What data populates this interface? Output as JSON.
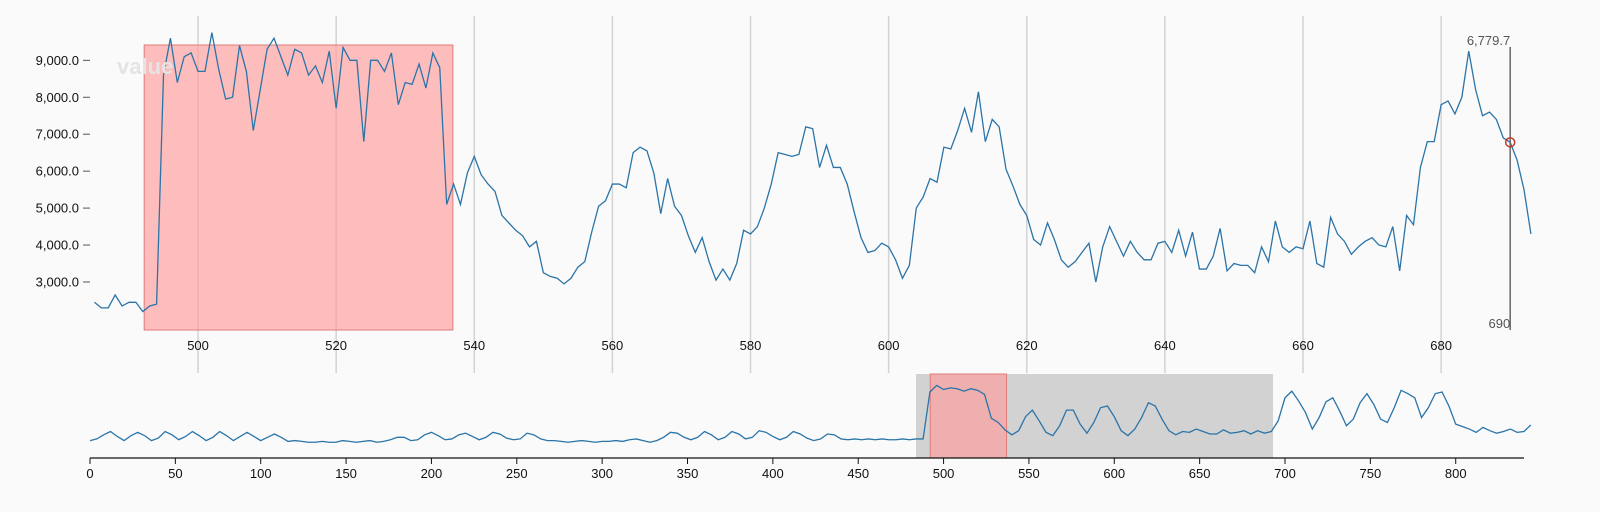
{
  "chart_data": [
    {
      "name": "focus",
      "type": "line",
      "ylabel": "value",
      "xlim": [
        484.5,
        692
      ],
      "ylim": [
        1700,
        10200
      ],
      "x_ticks": [
        500,
        520,
        540,
        560,
        580,
        600,
        620,
        640,
        660,
        680
      ],
      "x_tick_labels": [
        "500",
        "520",
        "540",
        "560",
        "580",
        "600",
        "620",
        "640",
        "660",
        "680"
      ],
      "y_ticks": [
        3000,
        4000,
        5000,
        6000,
        7000,
        8000,
        9000
      ],
      "y_tick_labels": [
        "3,000.0",
        "4,000.0",
        "5,000.0",
        "6,000.0",
        "7,000.0",
        "8,000.0",
        "9,000.0"
      ],
      "grid": "vertical",
      "highlight": {
        "x0": 492.2,
        "x1": 536.9,
        "color": "#ff9c9c"
      },
      "cursor": {
        "x": 690,
        "y": 6779.7,
        "value_label": "6,779.7",
        "x_label": "690"
      },
      "series": [
        {
          "color": "#2b74a8",
          "x_start": 485,
          "x_step": 1,
          "values": [
            2450,
            2300,
            2300,
            2650,
            2350,
            2450,
            2450,
            2200,
            2350,
            2400,
            8600,
            9600,
            8400,
            9100,
            9200,
            8700,
            8700,
            9750,
            8750,
            7950,
            8000,
            9400,
            8700,
            7100,
            8200,
            9300,
            9600,
            9100,
            8600,
            9300,
            9200,
            8600,
            8850,
            8400,
            9250,
            7700,
            9350,
            9000,
            9000,
            6800,
            9000,
            9000,
            8700,
            9200,
            7800,
            8400,
            8350,
            8900,
            8250,
            9200,
            8800,
            5100,
            5650,
            5100,
            5950,
            6400,
            5900,
            5650,
            5450,
            4800,
            4600,
            4400,
            4250,
            3950,
            4100,
            3250,
            3150,
            3100,
            2950,
            3100,
            3400,
            3550,
            4350,
            5050,
            5200,
            5650,
            5650,
            5550,
            6500,
            6650,
            6550,
            5950,
            4850,
            5800,
            5050,
            4800,
            4250,
            3800,
            4200,
            3550,
            3050,
            3350,
            3050,
            3500,
            4400,
            4300,
            4500,
            5000,
            5650,
            6500,
            6450,
            6400,
            6450,
            7200,
            7150,
            6100,
            6700,
            6100,
            6100,
            5650,
            4900,
            4200,
            3800,
            3850,
            4050,
            3950,
            3600,
            3100,
            3450,
            5000,
            5300,
            5800,
            5700,
            6650,
            6600,
            7100,
            7700,
            7050,
            8150,
            6800,
            7400,
            7200,
            6050,
            5600,
            5100,
            4800,
            4150,
            4000,
            4600,
            4150,
            3600,
            3400,
            3550,
            3800,
            4050,
            3000,
            3950,
            4500,
            4100,
            3700,
            4100,
            3800,
            3600,
            3600,
            4050,
            4100,
            3800,
            4400,
            3700,
            4350,
            3350,
            3350,
            3700,
            4450,
            3300,
            3500,
            3450,
            3450,
            3250,
            3950,
            3550,
            4650,
            3950,
            3800,
            3950,
            3900,
            4650,
            3500,
            3400,
            4750,
            4300,
            4100,
            3750,
            3950,
            4100,
            4200,
            4000,
            3950,
            4500,
            3300,
            4800,
            4550,
            6100,
            6800,
            6800,
            7800,
            7900,
            7550,
            8000,
            9250,
            8200,
            7500,
            7600,
            7400,
            6900,
            6779.7,
            6300,
            5500,
            4300
          ]
        }
      ]
    },
    {
      "name": "context",
      "type": "line",
      "xlim": [
        0,
        840
      ],
      "x_ticks": [
        0,
        50,
        100,
        150,
        200,
        250,
        300,
        350,
        400,
        450,
        500,
        550,
        600,
        650,
        700,
        750,
        800
      ],
      "x_tick_labels": [
        "0",
        "50",
        "100",
        "150",
        "200",
        "250",
        "300",
        "350",
        "400",
        "450",
        "500",
        "550",
        "600",
        "650",
        "700",
        "750",
        "800"
      ],
      "highlight": {
        "x0": 492.2,
        "x1": 536.9,
        "color": "#ff9c9c"
      },
      "brush": {
        "x0": 484.5,
        "x1": 692
      },
      "series": [
        {
          "color": "#2b74a8",
          "x_start": 0,
          "x_step": 4,
          "values": [
            2600,
            2800,
            3300,
            3700,
            3100,
            2600,
            3200,
            3600,
            3200,
            2600,
            2900,
            3700,
            3300,
            2700,
            3100,
            3700,
            3200,
            2600,
            3000,
            3700,
            3200,
            2600,
            3100,
            3600,
            3100,
            2600,
            3000,
            3400,
            3000,
            2500,
            2600,
            2500,
            2400,
            2400,
            2500,
            2400,
            2400,
            2600,
            2500,
            2400,
            2500,
            2600,
            2400,
            2500,
            2700,
            3000,
            3000,
            2600,
            2700,
            3300,
            3600,
            3200,
            2700,
            2800,
            3300,
            3500,
            3100,
            2700,
            3000,
            3600,
            3400,
            2900,
            2700,
            2800,
            3500,
            3300,
            2800,
            2600,
            2600,
            2500,
            2400,
            2500,
            2600,
            2500,
            2400,
            2500,
            2500,
            2600,
            2500,
            2700,
            2800,
            2600,
            2400,
            2600,
            3000,
            3600,
            3500,
            3000,
            2700,
            3000,
            3700,
            3300,
            2700,
            3000,
            3700,
            3400,
            2800,
            3000,
            3800,
            3600,
            3100,
            2700,
            3000,
            3700,
            3400,
            2900,
            2600,
            2800,
            3400,
            3300,
            2800,
            2700,
            2800,
            2700,
            2800,
            2700,
            2800,
            2700,
            2700,
            2800,
            2700,
            2800,
            2800,
            8500,
            9300,
            8800,
            9000,
            8900,
            8600,
            8900,
            8700,
            8200,
            5300,
            4800,
            3900,
            3300,
            3800,
            5500,
            6300,
            5000,
            3600,
            3200,
            4400,
            6300,
            6300,
            4600,
            3500,
            4800,
            6600,
            6800,
            5500,
            3800,
            3200,
            4000,
            5400,
            7200,
            6800,
            5200,
            3800,
            3300,
            3700,
            3600,
            4000,
            3700,
            3400,
            3400,
            3900,
            3500,
            3600,
            3800,
            3400,
            3800,
            3500,
            3700,
            5000,
            7800,
            8600,
            7400,
            6000,
            4000,
            5400,
            7300,
            7800,
            6200,
            4400,
            5200,
            7200,
            8300,
            7000,
            5200,
            4800,
            6600,
            8700,
            8300,
            7800,
            5400,
            6600,
            8300,
            8500,
            6800,
            4600,
            4300,
            4000,
            3600,
            4200,
            3800,
            3500,
            3700,
            4000,
            3600,
            3700,
            4500
          ]
        }
      ]
    }
  ]
}
